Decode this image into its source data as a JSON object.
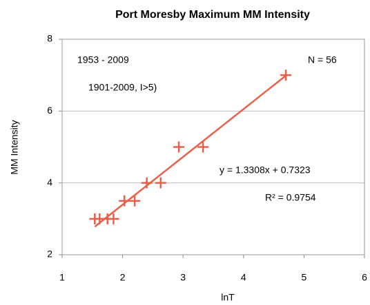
{
  "chart_data": {
    "type": "scatter",
    "title": "Port Moresby Maximum MM Intensity",
    "x_label": "lnT",
    "y_label": "MM Intensity",
    "x": [
      1.54,
      1.62,
      1.75,
      1.85,
      2.03,
      2.2,
      2.4,
      2.63,
      2.93,
      3.33,
      4.7
    ],
    "values": [
      3,
      3,
      3,
      3,
      3.5,
      3.5,
      4,
      4,
      5,
      5,
      7
    ],
    "color": "#e8604a",
    "xlim": [
      1,
      6
    ],
    "xticks": [
      1,
      2,
      3,
      4,
      5,
      6
    ],
    "ylim": [
      2,
      8
    ],
    "yticks": [
      2,
      4,
      6,
      8
    ],
    "grid": true,
    "trendline": {
      "slope": 1.3308,
      "intercept": 0.7323,
      "label": "y = 1.3308x + 0.7323"
    },
    "annotations": [
      "1953 - 2009",
      "1901-2009, I>5)",
      "N = 56",
      "R² = 0.9754"
    ]
  }
}
